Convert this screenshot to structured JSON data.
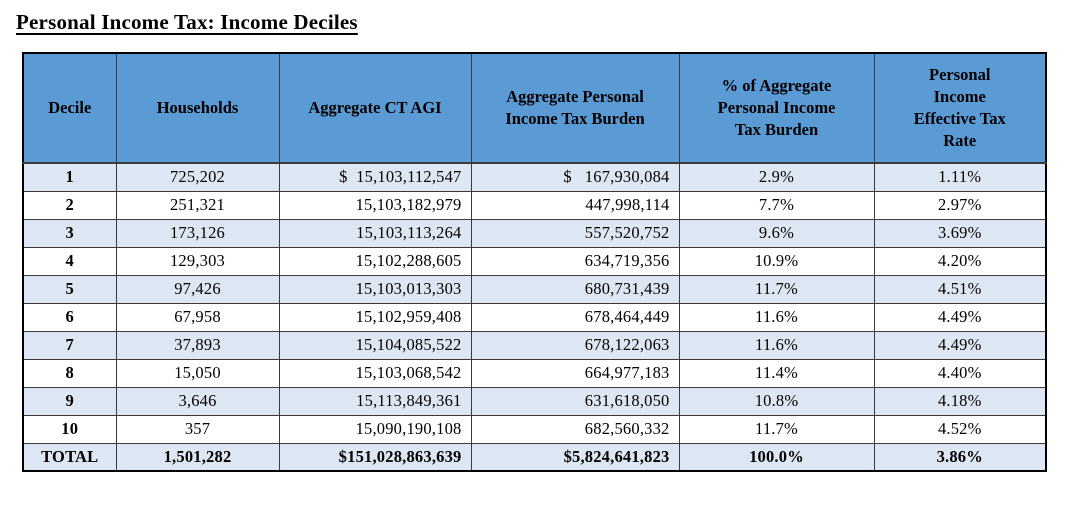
{
  "page": {
    "title": "Personal Income Tax: Income Deciles"
  },
  "theme": {
    "header-bg": "#5B9BD5",
    "band-bg": "#DCE7F3",
    "grid-line": "#3A3A3A",
    "outer-border": "#000000",
    "text": "#000000"
  },
  "table": {
    "columns": [
      {
        "key": "decile",
        "label": "Decile"
      },
      {
        "key": "households",
        "label": "Households"
      },
      {
        "key": "aggregate-ct-agi",
        "label": "Aggregate CT AGI"
      },
      {
        "key": "aggregate-personal-income-tax-burden",
        "label": "Aggregate Personal Income Tax Burden"
      },
      {
        "key": "pct-of-aggregate-personal-income-tax-burden",
        "label": "% of Aggregate Personal Income Tax Burden"
      },
      {
        "key": "personal-income-effective-tax-rate",
        "label": "Personal Income Effective Tax Rate"
      }
    ],
    "rows": [
      [
        "1",
        "725,202",
        "$  15,103,112,547",
        "$   167,930,084",
        "2.9%",
        "1.11%"
      ],
      [
        "2",
        "251,321",
        "15,103,182,979",
        "447,998,114",
        "7.7%",
        "2.97%"
      ],
      [
        "3",
        "173,126",
        "15,103,113,264",
        "557,520,752",
        "9.6%",
        "3.69%"
      ],
      [
        "4",
        "129,303",
        "15,102,288,605",
        "634,719,356",
        "10.9%",
        "4.20%"
      ],
      [
        "5",
        "97,426",
        "15,103,013,303",
        "680,731,439",
        "11.7%",
        "4.51%"
      ],
      [
        "6",
        "67,958",
        "15,102,959,408",
        "678,464,449",
        "11.6%",
        "4.49%"
      ],
      [
        "7",
        "37,893",
        "15,104,085,522",
        "678,122,063",
        "11.6%",
        "4.49%"
      ],
      [
        "8",
        "15,050",
        "15,103,068,542",
        "664,977,183",
        "11.4%",
        "4.40%"
      ],
      [
        "9",
        "3,646",
        "15,113,849,361",
        "631,618,050",
        "10.8%",
        "4.18%"
      ],
      [
        "10",
        "357",
        "15,090,190,108",
        "682,560,332",
        "11.7%",
        "4.52%"
      ]
    ],
    "total_row": [
      "TOTAL",
      "1,501,282",
      "$151,028,863,639",
      "$5,824,641,823",
      "100.0%",
      "3.86%"
    ]
  }
}
